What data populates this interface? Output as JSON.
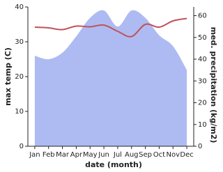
{
  "chart_data": {
    "type": "line",
    "x_label": "date (month)",
    "y_label": "max temp (C)",
    "y2_label": "med. precipitation (kg/m2)",
    "categories": [
      "Jan",
      "Feb",
      "Mar",
      "Apr",
      "May",
      "Jun",
      "Jul",
      "Aug",
      "Sep",
      "Oct",
      "Nov",
      "Dec"
    ],
    "series": [
      {
        "name": "med. precipitation",
        "type": "area",
        "axis": "y2",
        "color": "#aebbf2",
        "values": [
          41.6,
          40,
          43,
          50.5,
          59,
          62.4,
          55,
          62.4,
          59,
          51,
          46,
          35
        ]
      },
      {
        "name": "max temp",
        "type": "line",
        "color": "#c0525a",
        "values": [
          34.2,
          34,
          33.5,
          34.5,
          34.3,
          34.8,
          33,
          31.5,
          35,
          34.2,
          36,
          36.7
        ]
      }
    ],
    "ylim": [
      0,
      40
    ],
    "yticks": [
      0,
      10,
      20,
      30,
      40
    ],
    "y2lim": [
      0,
      64
    ],
    "y2ticks": [
      0,
      10,
      20,
      30,
      40,
      50,
      60
    ]
  }
}
